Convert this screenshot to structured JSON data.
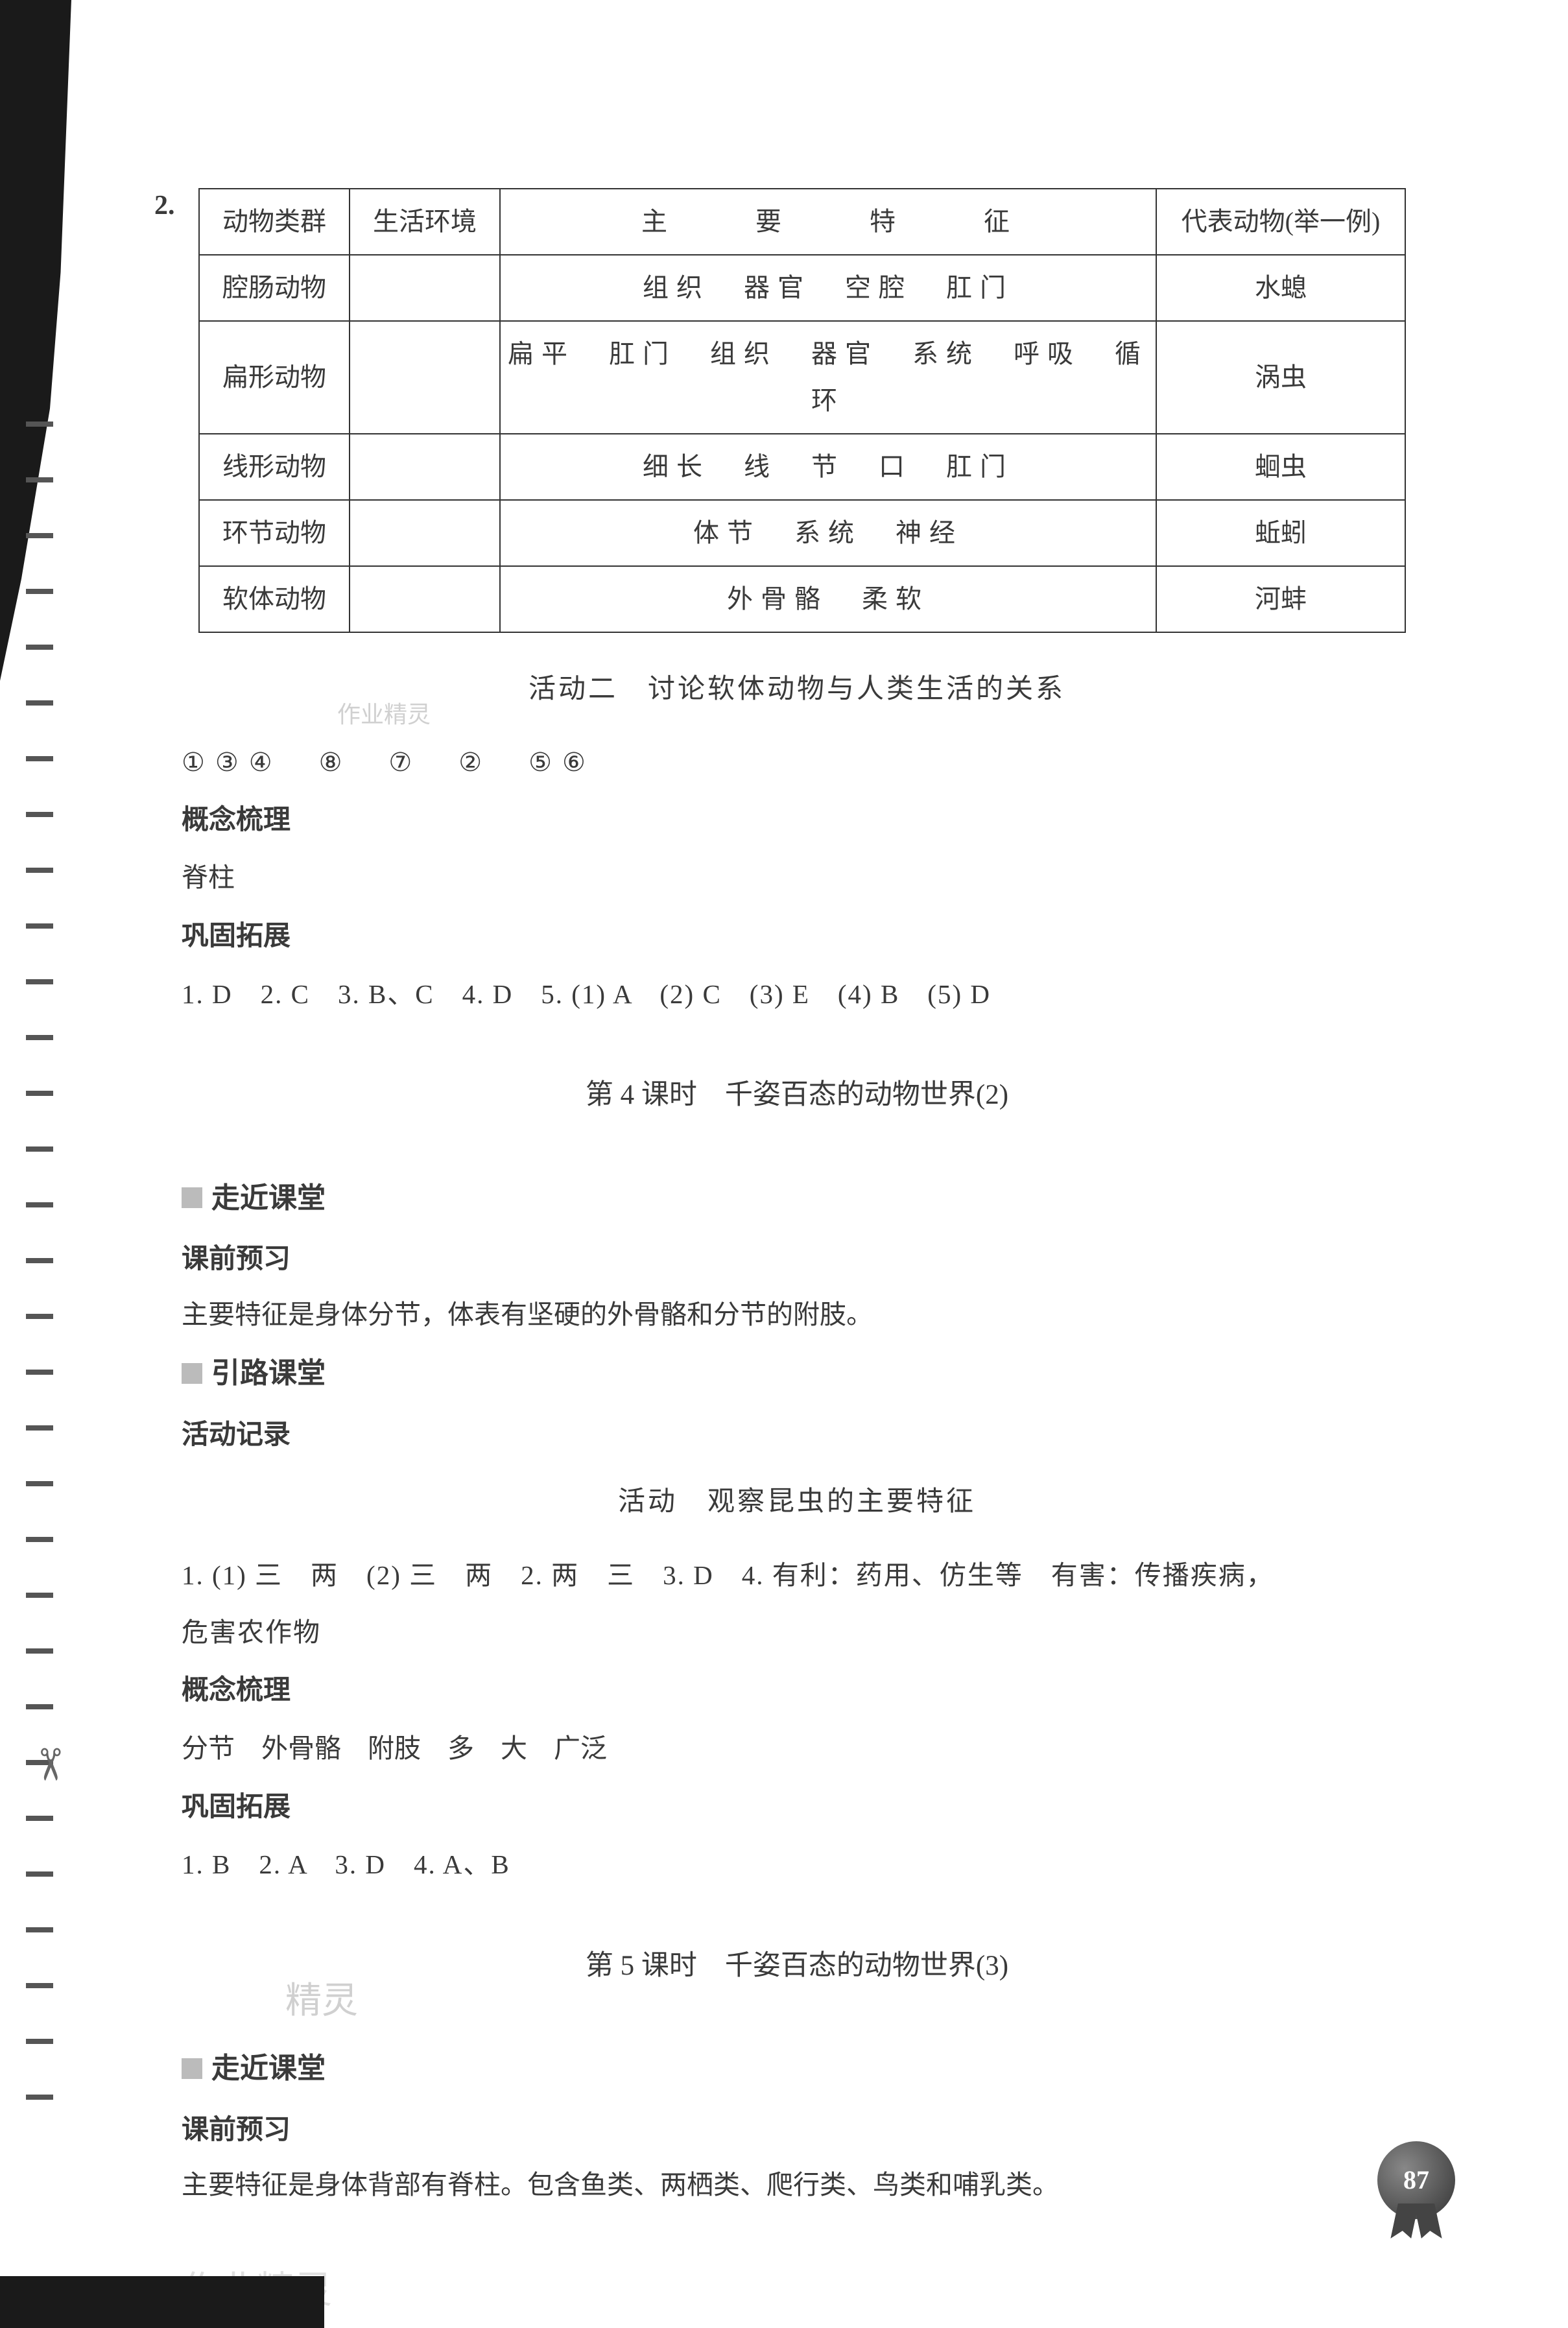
{
  "question_number": "2.",
  "table": {
    "headers": [
      "动物类群",
      "生活环境",
      "主　要　特　征",
      "代表动物(举一例)"
    ],
    "rows": [
      [
        "腔肠动物",
        "",
        "组织　器官　空腔　肛门",
        "水螅"
      ],
      [
        "扁形动物",
        "",
        "扁平　肛门　组织　器官　系统　呼吸　循环",
        "涡虫"
      ],
      [
        "线形动物",
        "",
        "细长　线　节　口　肛门",
        "蛔虫"
      ],
      [
        "环节动物",
        "",
        "体节　系统　神经",
        "蚯蚓"
      ],
      [
        "软体动物",
        "",
        "外骨骼　柔软",
        "河蚌"
      ]
    ]
  },
  "activity2_title": "活动二　讨论软体动物与人类生活的关系",
  "circled_answers": "①③④　⑧　⑦　②　⑤⑥",
  "concept_heading": "概念梳理",
  "concept_content": "脊柱",
  "consolidate_heading": "巩固拓展",
  "consolidate_answers": "1. D　2. C　3. B、C　4. D　5. (1) A　(2) C　(3) E　(4) B　(5) D",
  "lesson4_title": "第 4 课时　千姿百态的动物世界(2)",
  "enter_class": "走近课堂",
  "preview_heading": "课前预习",
  "preview_content_l4": "主要特征是身体分节，体表有坚硬的外骨骼和分节的附肢。",
  "lead_class": "引路课堂",
  "activity_record": "活动记录",
  "activity_title_l4": "活动　观察昆虫的主要特征",
  "activity_answers_l4_line1": "1. (1) 三　两　(2) 三　两　2. 两　三　3. D　4. 有利：药用、仿生等　有害：传播疾病，",
  "activity_answers_l4_line2": "危害农作物",
  "concept_content_l4": "分节　外骨骼　附肢　多　大　广泛",
  "consolidate_answers_l4": "1. B　2. A　3. D　4. A、B",
  "lesson5_title": "第 5 课时　千姿百态的动物世界(3)",
  "preview_content_l5": "主要特征是身体背部有脊柱。包含鱼类、两栖类、爬行类、鸟类和哺乳类。",
  "page_number": "87",
  "watermark1": "作业精灵",
  "watermark2": "精灵",
  "watermark3": "作业精灵"
}
